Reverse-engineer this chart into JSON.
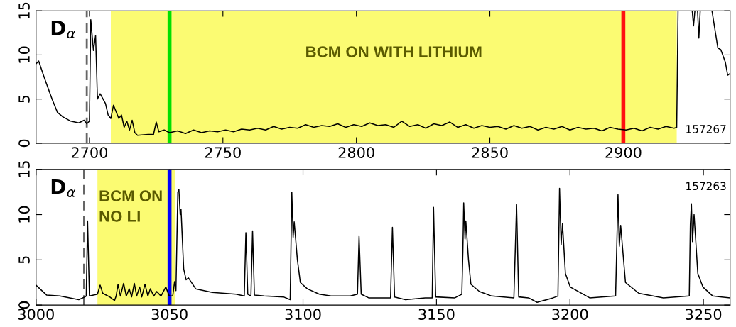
{
  "chart_data": [
    {
      "type": "line",
      "xlim": [
        2680,
        2940
      ],
      "ylim": [
        0,
        15
      ],
      "xticks": [
        2700,
        2750,
        2800,
        2850,
        2900
      ],
      "yticks": [
        0,
        5,
        10,
        15
      ],
      "grid": false,
      "series": [
        {
          "color": "#000000",
          "x": [
            2680,
            2681,
            2683,
            2686,
            2688,
            2690,
            2693,
            2696,
            2698,
            2699,
            2700,
            2700.5,
            2701.5,
            2702.3,
            2703,
            2704,
            2706,
            2707,
            2708,
            2709,
            2711,
            2712,
            2713,
            2714,
            2715,
            2716,
            2717,
            2718,
            2722,
            2724,
            2725,
            2726,
            2728,
            2730,
            2733,
            2736,
            2739,
            2742,
            2745,
            2748,
            2751,
            2754,
            2757,
            2760,
            2763,
            2766,
            2769,
            2772,
            2775,
            2778,
            2781,
            2784,
            2787,
            2790,
            2793,
            2796,
            2799,
            2802,
            2805,
            2808,
            2811,
            2814,
            2817,
            2820,
            2823,
            2826,
            2829,
            2832,
            2835,
            2838,
            2841,
            2844,
            2847,
            2850,
            2853,
            2856,
            2859,
            2862,
            2865,
            2868,
            2871,
            2874,
            2877,
            2880,
            2883,
            2886,
            2889,
            2892,
            2895,
            2898,
            2901,
            2904,
            2907,
            2910,
            2913,
            2916,
            2919,
            2920,
            2920.5,
            2925.8,
            2926.3,
            2926.8,
            2927.8,
            2928.3,
            2928.8,
            2933.2,
            2935.4,
            2936.5,
            2938.2,
            2939.1,
            2940
          ],
          "values": [
            9.0,
            9.3,
            7.5,
            5.0,
            3.5,
            3.0,
            2.5,
            2.3,
            2.6,
            2.2,
            2.5,
            14.0,
            10.5,
            12.2,
            5.0,
            5.6,
            4.5,
            3.2,
            2.8,
            4.3,
            2.8,
            3.2,
            1.8,
            2.5,
            1.5,
            2.6,
            1.2,
            0.9,
            1.0,
            1.0,
            2.4,
            1.3,
            1.5,
            1.2,
            1.4,
            1.1,
            1.5,
            1.2,
            1.4,
            1.3,
            1.5,
            1.3,
            1.6,
            1.5,
            1.7,
            1.5,
            1.9,
            1.6,
            1.8,
            1.7,
            2.1,
            1.8,
            2.0,
            1.9,
            2.2,
            1.8,
            2.1,
            1.9,
            2.3,
            2.0,
            2.1,
            1.8,
            2.5,
            1.9,
            2.1,
            1.7,
            2.2,
            2.0,
            2.4,
            1.8,
            2.1,
            1.7,
            2.0,
            1.8,
            1.9,
            1.6,
            2.0,
            1.7,
            1.9,
            1.5,
            1.8,
            1.6,
            1.9,
            1.5,
            1.8,
            1.6,
            1.7,
            1.4,
            1.8,
            1.6,
            1.5,
            1.7,
            1.4,
            1.8,
            1.6,
            1.9,
            1.7,
            1.8,
            15,
            15,
            13.3,
            15,
            15,
            11.9,
            15,
            15,
            10.8,
            10.6,
            9.2,
            7.7,
            7.9
          ]
        }
      ],
      "bands": [
        {
          "axis": "x",
          "from": 2708,
          "to": 2920,
          "label": "BCM ON WITH LITHIUM",
          "color": "#fbfb72"
        }
      ],
      "ref_lines": [
        {
          "axis": "x",
          "value": 2699,
          "color": "#666666",
          "line_style": "dashed"
        },
        {
          "axis": "x",
          "value": 2730,
          "color": "#00e000",
          "line_style": "solid"
        },
        {
          "axis": "x",
          "value": 2900,
          "color": "#ff1010",
          "line_style": "solid"
        }
      ],
      "annotations": [
        "D$_{α}$",
        "157267"
      ]
    },
    {
      "type": "line",
      "xlim": [
        3000,
        3260
      ],
      "ylim": [
        0,
        15
      ],
      "xticks": [
        3000,
        3050,
        3100,
        3150,
        3200,
        3250
      ],
      "yticks": [
        0,
        5,
        10,
        15
      ],
      "grid": false,
      "series": [
        {
          "color": "#000000",
          "x": [
            3000,
            3004,
            3008.9,
            3016,
            3018.3,
            3018.8,
            3019.3,
            3020,
            3021.5,
            3023,
            3024,
            3025,
            3027.6,
            3029.4,
            3030,
            3030.7,
            3031.6,
            3032.8,
            3033.8,
            3034.9,
            3035.8,
            3036.8,
            3037.7,
            3038.8,
            3039.6,
            3040.8,
            3041.9,
            3042.8,
            3044.1,
            3045.2,
            3046.8,
            3048.6,
            3049.9,
            3051.2,
            3051.9,
            3052.4,
            3053.1,
            3053.5,
            3054,
            3054.3,
            3055.3,
            3056.2,
            3057.1,
            3059.8,
            3066,
            3070.5,
            3074.9,
            3078,
            3078.6,
            3079.3,
            3080.5,
            3081.1,
            3081.8,
            3085.5,
            3092.7,
            3095.2,
            3095.8,
            3096.3,
            3096.7,
            3097.9,
            3099,
            3101.6,
            3106.1,
            3110.5,
            3117.7,
            3120.4,
            3121,
            3121.8,
            3124.6,
            3132.8,
            3133.5,
            3134.3,
            3138.4,
            3145.8,
            3148.4,
            3148.9,
            3149.7,
            3156.9,
            3159.5,
            3159.9,
            3160.2,
            3160.7,
            3161,
            3162,
            3162.9,
            3166.1,
            3170.7,
            3179,
            3180,
            3180.8,
            3184.5,
            3187.7,
            3193.7,
            3195.5,
            3196.1,
            3196.7,
            3197.2,
            3198.3,
            3200.1,
            3207.4,
            3217.1,
            3218,
            3218.5,
            3219,
            3220.8,
            3225.8,
            3235,
            3244.7,
            3245.1,
            3245.5,
            3245.9,
            3246.5,
            3247.9,
            3249.8,
            3253.5,
            3260
          ],
          "values": [
            2.2,
            1.1,
            1.0,
            0.6,
            0.9,
            1.0,
            9.3,
            1.0,
            1.1,
            1.2,
            2.2,
            1.3,
            0.9,
            0.5,
            1.0,
            2.3,
            1.0,
            2.4,
            1.0,
            1.8,
            0.9,
            2.4,
            1.0,
            2.0,
            0.9,
            2.3,
            1.0,
            1.8,
            1.0,
            1.5,
            1.0,
            2.0,
            1.0,
            1.0,
            2.6,
            1.6,
            12.5,
            12.8,
            10.0,
            10.6,
            4.0,
            2.8,
            3.0,
            1.8,
            1.4,
            1.3,
            1.2,
            1.0,
            8.0,
            1.2,
            1.0,
            8.2,
            1.1,
            1.0,
            0.9,
            0.6,
            12.5,
            7.5,
            9.2,
            5.0,
            2.5,
            1.8,
            1.2,
            1.0,
            1.0,
            1.2,
            7.6,
            1.2,
            0.8,
            0.8,
            8.6,
            0.9,
            0.6,
            0.8,
            0.8,
            10.8,
            0.9,
            0.8,
            1.2,
            6.0,
            11.3,
            7.3,
            9.3,
            5.0,
            2.3,
            1.5,
            1.0,
            0.8,
            11.1,
            0.9,
            0.8,
            0.3,
            0.8,
            1.0,
            12.9,
            6.7,
            9.0,
            3.5,
            2.0,
            0.8,
            1.0,
            12.2,
            6.5,
            8.8,
            2.5,
            1.3,
            0.8,
            1.0,
            8.9,
            11.2,
            7.0,
            10.0,
            3.5,
            2.0,
            1.0,
            0.8
          ]
        }
      ],
      "bands": [
        {
          "axis": "x",
          "from": 3023,
          "to": 3052,
          "label": "BCM ON\nNO LI",
          "color": "#fbfb72"
        }
      ],
      "ref_lines": [
        {
          "axis": "x",
          "value": 3018,
          "color": "#666666",
          "line_style": "dashed"
        },
        {
          "axis": "x",
          "value": 3050,
          "color": "#0000ff",
          "line_style": "solid"
        }
      ],
      "annotations": [
        "D$_{α}$",
        "157263"
      ]
    }
  ]
}
